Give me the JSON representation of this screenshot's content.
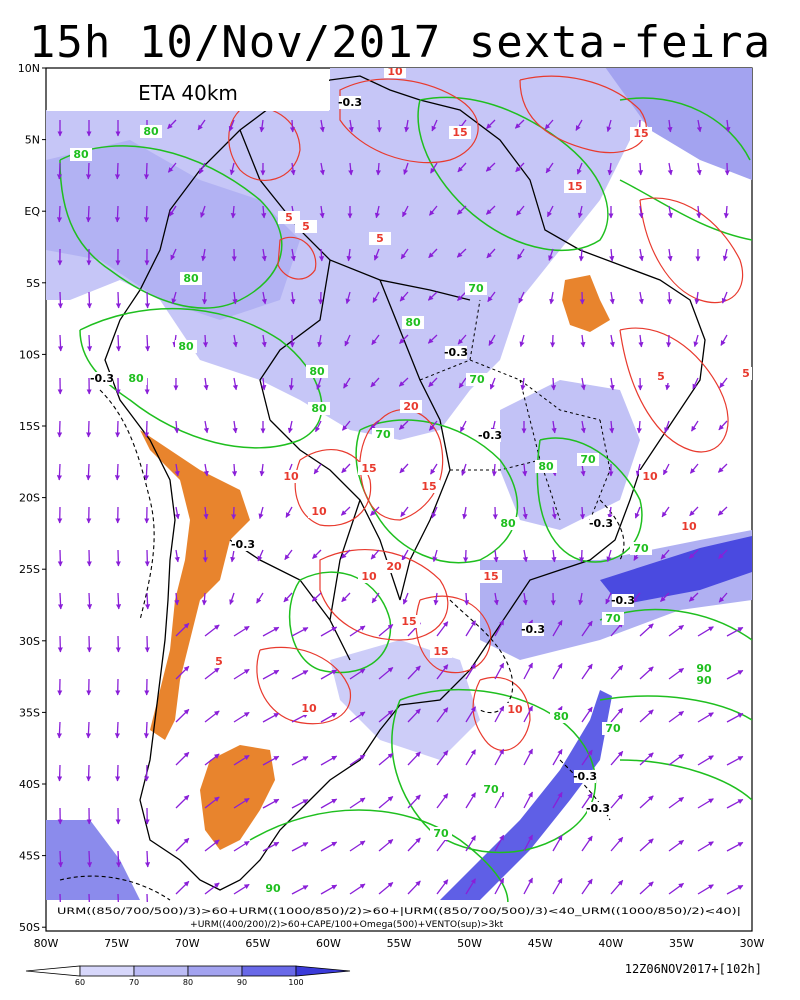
{
  "title": "15h 10/Nov/2017 sexta-feira",
  "model_label": "ETA 40km",
  "lat_labels": [
    "10N",
    "5N",
    "EQ",
    "5S",
    "10S",
    "15S",
    "20S",
    "25S",
    "30S",
    "35S",
    "40S",
    "45S",
    "50S"
  ],
  "lon_labels": [
    "80W",
    "75W",
    "70W",
    "65W",
    "60W",
    "55W",
    "50W",
    "45W",
    "40W",
    "35W",
    "30W"
  ],
  "formula_line1": "URM((850/700/500)/3)>60+URM((1000/850)/2)>60+|URM((850/700/500)/3)<40_URM((1000/850)/2)<40)|",
  "formula_line2": "+URM((400/200)/2)>60+CAPE/100+Omega(500)+VENTO(sup)>3kt",
  "colorbar_ticks": [
    "60",
    "70",
    "80",
    "90",
    "100"
  ],
  "run_label": "12Z06NOV2017+[102h]",
  "contour_labels": {
    "green": [
      "80",
      "80",
      "80",
      "80",
      "80",
      "80",
      "80",
      "80",
      "70",
      "70",
      "70",
      "80",
      "80",
      "70",
      "70",
      "70",
      "90",
      "90",
      "80",
      "70",
      "70",
      "70",
      "90"
    ],
    "red": [
      "10",
      "5",
      "15",
      "5",
      "5",
      "10",
      "15",
      "15",
      "10",
      "10",
      "5",
      "15",
      "20",
      "10",
      "15",
      "15",
      "20",
      "15",
      "10",
      "5",
      "5",
      "10",
      "10",
      "15"
    ],
    "black": [
      "-0.3",
      "-0.3",
      "-0.3",
      "-0.3",
      "-0.3",
      "-0.3",
      "-0.3",
      "-0.3",
      "-0.3",
      "-0.3"
    ]
  },
  "colors": {
    "rh_60": "#d7d7fb",
    "rh_70": "#bcbcf5",
    "rh_80": "#a3a3f0",
    "rh_90": "#6969e8",
    "rh_100": "#3b3bd9",
    "cape": "#e8842d",
    "contour_green": "#1fbf1f",
    "contour_red": "#e83a2e",
    "wind_vector": "#8a1fd8",
    "coast": "#000000"
  }
}
